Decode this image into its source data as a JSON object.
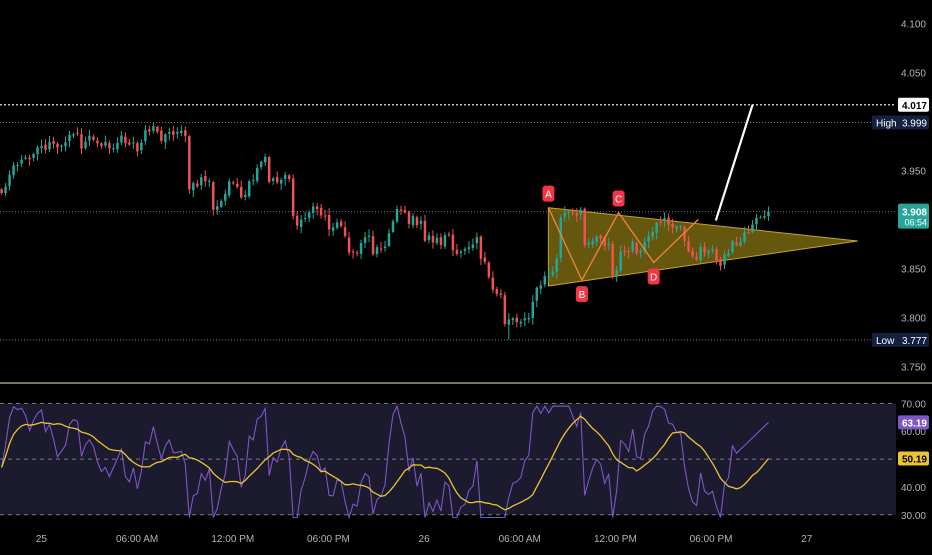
{
  "colors": {
    "background": "#000000",
    "bull": "#26a69a",
    "bear": "#ef5350",
    "axis_text": "#b2b5be",
    "grid": "#2a2e39",
    "divider": "#f5e9b0",
    "pattern_fill": "#8c7a14",
    "pattern_stroke": "#c9a227",
    "swing_line": "#f0843a",
    "pivot_badge": "#f23645",
    "projection": "#ffffff",
    "rsi_line": "#7e57c2",
    "rsi_ma": "#e9c533",
    "rsi_band": "#1c1a2e",
    "price_tag": "#26a69a",
    "hl_tag": "#132042"
  },
  "chart_data": [
    {
      "type": "candlestick",
      "name": "price",
      "y_ticks": [
        "4.100",
        "4.050",
        "3.950",
        "3.850",
        "3.800",
        "3.750"
      ],
      "ylim": [
        3.733,
        4.124
      ],
      "x_ticks": [
        {
          "label": "25",
          "t": 0
        },
        {
          "label": "06:00 AM",
          "t": 6
        },
        {
          "label": "12:00 PM",
          "t": 12
        },
        {
          "label": "06:00 PM",
          "t": 18
        },
        {
          "label": "26",
          "t": 24
        },
        {
          "label": "06:00 AM",
          "t": 30
        },
        {
          "label": "12:00 PM",
          "t": 36
        },
        {
          "label": "06:00 PM",
          "t": 42
        },
        {
          "label": "27",
          "t": 48
        }
      ],
      "xlim": [
        -2.6,
        53.6
      ],
      "candle_hours": [
        -2.5,
        45.6
      ],
      "anchors": [
        [
          3.96,
          3.925
        ],
        [
          3.975,
          3.955
        ],
        [
          3.985,
          3.97
        ],
        [
          3.99,
          3.98
        ],
        [
          3.978,
          3.97
        ],
        [
          3.985,
          3.97
        ],
        [
          3.998,
          3.985
        ],
        [
          3.985,
          3.94
        ],
        [
          3.935,
          3.915
        ],
        [
          3.94,
          3.925
        ],
        [
          3.965,
          3.945
        ],
        [
          3.935,
          3.9
        ],
        [
          3.91,
          3.905
        ],
        [
          3.885,
          3.86
        ],
        [
          3.885,
          3.855
        ],
        [
          3.905,
          3.905
        ],
        [
          3.9,
          3.875
        ],
        [
          3.885,
          3.865
        ],
        [
          3.875,
          3.86
        ],
        [
          3.82,
          3.79
        ],
        [
          3.8,
          3.815
        ],
        [
          3.86,
          3.9
        ],
        [
          3.915,
          3.87
        ],
        [
          3.88,
          3.84
        ],
        [
          3.885,
          3.87
        ],
        [
          3.9,
          3.905
        ],
        [
          3.875,
          3.86
        ],
        [
          3.87,
          3.855
        ],
        [
          3.878,
          3.885
        ],
        [
          3.908,
          3.908
        ]
      ],
      "markers": {
        "high": {
          "label": "High",
          "value_label": "3.999",
          "value": 3.999
        },
        "low": {
          "label": "Low",
          "value_label": "3.777",
          "value": 3.777
        },
        "target": {
          "value_label": "4.017",
          "value": 4.017
        },
        "last": {
          "value_label": "3.908",
          "countdown": "06:54",
          "value": 3.908
        }
      },
      "pattern": {
        "type": "symmetrical-triangle",
        "points": [
          [
            31.8,
            3.912
          ],
          [
            31.8,
            3.832
          ],
          [
            51.2,
            3.878
          ]
        ],
        "swings": [
          {
            "label": "A",
            "t": 31.8,
            "v": 3.912
          },
          {
            "label": "B",
            "t": 33.9,
            "v": 3.838
          },
          {
            "label": "C",
            "t": 36.2,
            "v": 3.907
          },
          {
            "label": "D",
            "t": 38.4,
            "v": 3.856
          },
          {
            "label": "",
            "t": 41.2,
            "v": 3.9
          }
        ],
        "projection": [
          [
            42.3,
            3.899
          ],
          [
            44.6,
            4.017
          ]
        ]
      }
    },
    {
      "type": "line",
      "name": "rsi",
      "y_ticks": [
        "70.00",
        "60.00",
        "40.00",
        "30.00"
      ],
      "ylim": [
        27.4,
        76.6
      ],
      "band": [
        30,
        70
      ],
      "midline": 50,
      "series": [
        {
          "key": "rsi",
          "value_label": "63.19",
          "last": 63.19
        },
        {
          "key": "rsi_ma",
          "value_label": "50.19",
          "last": 50.19
        }
      ]
    }
  ]
}
